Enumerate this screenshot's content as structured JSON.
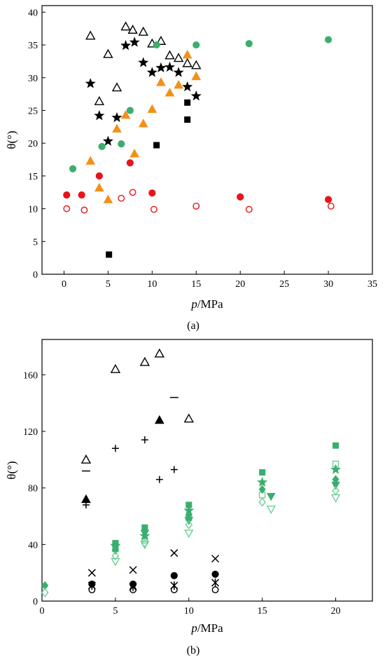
{
  "panels": [
    {
      "caption": "(a)",
      "ylabel": "θ(°)",
      "xlabel_p": "p",
      "xlabel_unit": "/MPa"
    },
    {
      "caption": "(b)",
      "ylabel": "θ(°)",
      "xlabel_p": "p",
      "xlabel_unit": "/MPa"
    }
  ],
  "colors": {
    "black": "#000000",
    "red": "#e8141a",
    "green": "#3aae6e",
    "orange": "#f39018",
    "light_green": "#6ecf98"
  },
  "chart_data": [
    {
      "type": "scatter",
      "title": "",
      "caption": "(a)",
      "xlabel": "p/MPa",
      "ylabel": "θ(°)",
      "xlim": [
        -2.5,
        35
      ],
      "ylim": [
        0,
        41
      ],
      "xticks": [
        0,
        5,
        10,
        15,
        20,
        25,
        30,
        35
      ],
      "yticks": [
        0,
        5,
        10,
        15,
        20,
        25,
        30,
        35,
        40
      ],
      "grid": false,
      "series": [
        {
          "marker": "open-triangle",
          "color": "#000000",
          "points": [
            [
              3,
              36.4
            ],
            [
              4,
              26.4
            ],
            [
              5,
              33.6
            ],
            [
              6,
              28.5
            ],
            [
              7,
              37.8
            ],
            [
              7.8,
              37.3
            ],
            [
              9,
              37
            ],
            [
              10,
              35.2
            ],
            [
              11,
              35.6
            ],
            [
              12,
              33.4
            ],
            [
              13,
              33
            ],
            [
              14,
              32.2
            ],
            [
              15,
              31.9
            ]
          ]
        },
        {
          "marker": "star",
          "color": "#000000",
          "points": [
            [
              3,
              29.1
            ],
            [
              4,
              24.2
            ],
            [
              5,
              20.3
            ],
            [
              6,
              23.9
            ],
            [
              7,
              34.9
            ],
            [
              8,
              35.4
            ],
            [
              9,
              32.3
            ],
            [
              10,
              30.8
            ],
            [
              11,
              31.5
            ],
            [
              12,
              31.6
            ],
            [
              13,
              30.8
            ],
            [
              14,
              28.6
            ],
            [
              15,
              27.2
            ]
          ]
        },
        {
          "marker": "filled-square",
          "color": "#000000",
          "points": [
            [
              5.1,
              3
            ],
            [
              10.5,
              19.7
            ],
            [
              14,
              26.2
            ],
            [
              14,
              23.6
            ]
          ]
        },
        {
          "marker": "filled-triangle",
          "color": "#f39018",
          "points": [
            [
              3,
              17.3
            ],
            [
              4,
              13.2
            ],
            [
              5,
              11.4
            ],
            [
              6,
              22.2
            ],
            [
              7,
              24.3
            ],
            [
              8,
              18.4
            ],
            [
              9,
              23
            ],
            [
              10,
              25.2
            ],
            [
              11,
              29.3
            ],
            [
              12,
              27.7
            ],
            [
              13,
              28.9
            ],
            [
              14,
              33.5
            ],
            [
              15,
              30.2
            ]
          ]
        },
        {
          "marker": "filled-circle",
          "color": "#3aae6e",
          "points": [
            [
              1,
              16.1
            ],
            [
              4.3,
              19.5
            ],
            [
              6.5,
              19.9
            ],
            [
              7.5,
              25
            ],
            [
              10.5,
              35
            ],
            [
              15,
              35
            ],
            [
              21,
              35.2
            ],
            [
              30,
              35.8
            ]
          ]
        },
        {
          "marker": "filled-circle",
          "color": "#e8141a",
          "points": [
            [
              0.3,
              12.1
            ],
            [
              2,
              12.1
            ],
            [
              4,
              15
            ],
            [
              7.5,
              17
            ],
            [
              10,
              12.4
            ],
            [
              20,
              11.8
            ],
            [
              30,
              11.4
            ]
          ]
        },
        {
          "marker": "open-circle",
          "color": "#e8141a",
          "points": [
            [
              0.3,
              10
            ],
            [
              2.3,
              9.8
            ],
            [
              6.5,
              11.6
            ],
            [
              7.8,
              12.5
            ],
            [
              10.2,
              9.9
            ],
            [
              15,
              10.4
            ],
            [
              21,
              9.9
            ],
            [
              30.3,
              10.4
            ]
          ]
        }
      ]
    },
    {
      "type": "scatter",
      "title": "",
      "caption": "(b)",
      "xlabel": "p/MPa",
      "ylabel": "θ(°)",
      "xlim": [
        0,
        22.5
      ],
      "ylim": [
        0,
        185
      ],
      "xticks": [
        0,
        5,
        10,
        15,
        20
      ],
      "yticks": [
        0,
        40,
        80,
        120,
        160
      ],
      "grid": false,
      "series": [
        {
          "marker": "open-triangle",
          "color": "#000000",
          "points": [
            [
              3,
              100
            ],
            [
              5,
              164
            ],
            [
              7,
              169
            ],
            [
              8,
              175
            ],
            [
              10,
              129
            ]
          ]
        },
        {
          "marker": "dash",
          "color": "#000000",
          "points": [
            [
              3,
              92
            ],
            [
              9,
              144
            ]
          ]
        },
        {
          "marker": "filled-triangle",
          "color": "#000000",
          "points": [
            [
              3,
              72
            ],
            [
              8,
              128
            ]
          ]
        },
        {
          "marker": "plus",
          "color": "#000000",
          "points": [
            [
              3,
              68
            ],
            [
              5,
              108
            ],
            [
              7,
              114
            ],
            [
              8,
              86
            ],
            [
              9,
              93
            ]
          ]
        },
        {
          "marker": "cross",
          "color": "#000000",
          "points": [
            [
              3.4,
              20
            ],
            [
              6.2,
              22
            ],
            [
              9,
              34
            ],
            [
              11.8,
              30
            ]
          ]
        },
        {
          "marker": "asterisk",
          "color": "#000000",
          "points": [
            [
              3.4,
              11
            ],
            [
              6.2,
              10
            ],
            [
              9,
              11
            ],
            [
              11.8,
              13
            ]
          ]
        },
        {
          "marker": "filled-circle",
          "color": "#000000",
          "points": [
            [
              3.4,
              12
            ],
            [
              6.2,
              12
            ],
            [
              9,
              18
            ],
            [
              11.8,
              19
            ]
          ]
        },
        {
          "marker": "open-circle",
          "color": "#000000",
          "points": [
            [
              3.4,
              8
            ],
            [
              6.2,
              8
            ],
            [
              9,
              8
            ],
            [
              11.8,
              8
            ]
          ]
        },
        {
          "marker": "filled-square",
          "color": "#3aae6e",
          "points": [
            [
              5,
              41
            ],
            [
              7,
              52
            ],
            [
              10,
              68
            ],
            [
              15,
              91
            ],
            [
              20,
              110
            ]
          ]
        },
        {
          "marker": "open-square",
          "color": "#6ecf98",
          "points": [
            [
              5,
              37
            ],
            [
              7,
              43
            ],
            [
              10,
              59
            ],
            [
              15,
              75
            ],
            [
              20,
              97
            ]
          ]
        },
        {
          "marker": "star",
          "color": "#3aae6e",
          "points": [
            [
              5,
              39
            ],
            [
              7,
              46
            ],
            [
              10,
              64
            ],
            [
              15,
              84
            ],
            [
              20,
              93
            ]
          ]
        },
        {
          "marker": "filled-diamond",
          "color": "#3aae6e",
          "points": [
            [
              0.2,
              11
            ],
            [
              5,
              36
            ],
            [
              10,
              61
            ],
            [
              15,
              79
            ],
            [
              20,
              86
            ]
          ]
        },
        {
          "marker": "filled-triangle-down",
          "color": "#3aae6e",
          "points": [
            [
              5,
              38
            ],
            [
              7,
              48
            ],
            [
              10,
              57
            ],
            [
              15.6,
              74
            ],
            [
              20,
              82
            ]
          ]
        },
        {
          "marker": "open-diamond",
          "color": "#6ecf98",
          "points": [
            [
              0.2,
              6
            ],
            [
              5,
              32
            ],
            [
              7,
              41
            ],
            [
              10,
              54
            ],
            [
              15,
              70
            ],
            [
              20,
              78
            ]
          ]
        },
        {
          "marker": "open-triangle-down",
          "color": "#6ecf98",
          "points": [
            [
              5,
              28
            ],
            [
              7,
              40
            ],
            [
              10,
              48
            ],
            [
              15.6,
              65
            ],
            [
              20,
              73
            ]
          ]
        }
      ]
    }
  ]
}
